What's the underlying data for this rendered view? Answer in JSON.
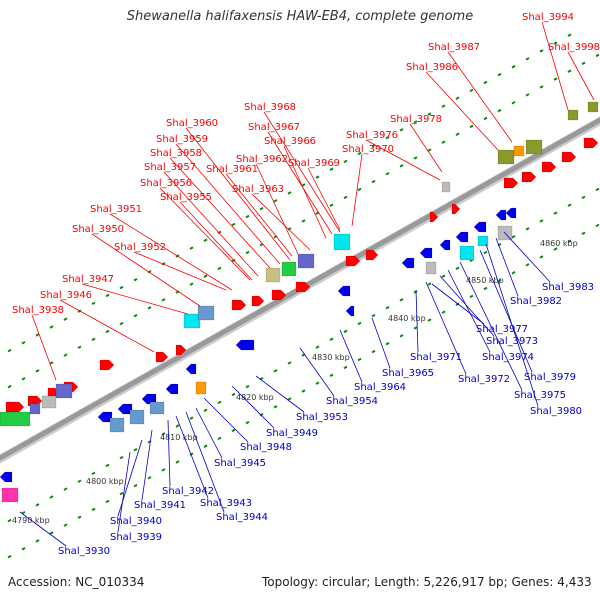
{
  "title": "Shewanella halifaxensis HAW-EB4, complete genome",
  "footer": {
    "accession": "Accession: NC_010334",
    "topology": "Topology: circular; Length: 5,226,917 bp; Genes: 4,433"
  },
  "scale_labels": [
    "4790 kbp",
    "4800 kbp",
    "4810 kbp",
    "4820 kbp",
    "4830 kbp",
    "4840 kbp",
    "4850 kbp",
    "4860 kbp"
  ],
  "genes_top": [
    "Shal_3938",
    "Shal_3946",
    "Shal_3947",
    "Shal_3950",
    "Shal_3951",
    "Shal_3952",
    "Shal_3955",
    "Shal_3956",
    "Shal_3957",
    "Shal_3958",
    "Shal_3959",
    "Shal_3960",
    "Shal_3961",
    "Shal_3962",
    "Shal_3963",
    "Shal_3966",
    "Shal_3967",
    "Shal_3968",
    "Shal_3969",
    "Shal_3970",
    "Shal_3976",
    "Shal_3978",
    "Shal_3986",
    "Shal_3987",
    "Shal_3994",
    "Shal_3998"
  ],
  "genes_bottom": [
    "Shal_3930",
    "Shal_3939",
    "Shal_3940",
    "Shal_3941",
    "Shal_3942",
    "Shal_3943",
    "Shal_3944",
    "Shal_3945",
    "Shal_3948",
    "Shal_3949",
    "Shal_3953",
    "Shal_3954",
    "Shal_3964",
    "Shal_3965",
    "Shal_3971",
    "Shal_3972",
    "Shal_3973",
    "Shal_3974",
    "Shal_3975",
    "Shal_3977",
    "Shal_3979",
    "Shal_3980",
    "Shal_3982",
    "Shal_3983"
  ],
  "colors": {
    "forward_strand": "#ff0000",
    "reverse_strand": "#0000ee",
    "top_label": "#ff0000",
    "bottom_label": "#0000cc",
    "backbone": "#999999",
    "tick": "#118811",
    "cyan": "#00e5ee",
    "olive": "#8a9a2a",
    "purple": "#6666cc",
    "green": "#22cc44",
    "gray": "#bbbbbb",
    "orange": "#ff9900",
    "magenta": "#ff33aa",
    "khaki": "#c8c080",
    "lightblue": "#6699cc"
  }
}
